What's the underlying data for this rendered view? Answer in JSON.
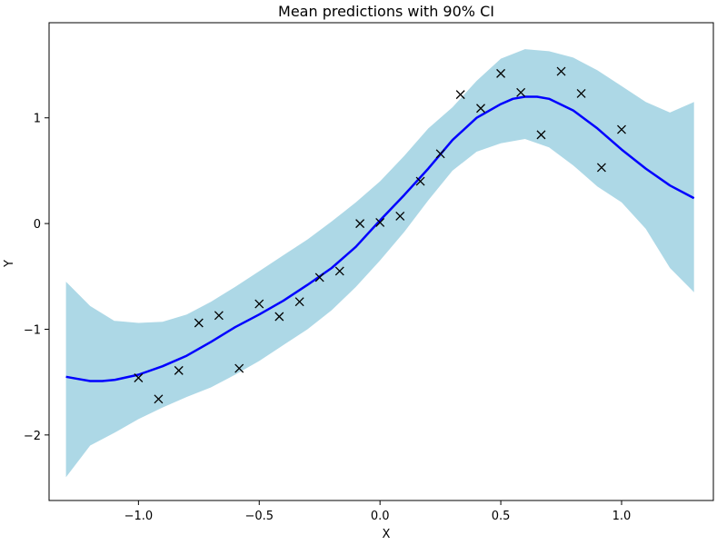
{
  "chart_data": {
    "type": "line",
    "title": "Mean predictions with 90% CI",
    "xlabel": "X",
    "ylabel": "Y",
    "xlim": [
      -1.37,
      1.38
    ],
    "ylim": [
      -2.62,
      1.9
    ],
    "x_ticks": [
      -1.0,
      -0.5,
      0.0,
      0.5,
      1.0
    ],
    "x_tick_labels": [
      "−1.0",
      "−0.5",
      "0.0",
      "0.5",
      "1.0"
    ],
    "y_ticks": [
      -2,
      -1,
      0,
      1
    ],
    "y_tick_labels": [
      "−2",
      "−1",
      "0",
      "1"
    ],
    "grid": false,
    "colors": {
      "mean": "#0000ff",
      "band": "#add8e6",
      "points": "#000000"
    },
    "series": [
      {
        "kind": "mean-line",
        "x": [
          -1.3,
          -1.25,
          -1.2,
          -1.15,
          -1.1,
          -1.0,
          -0.9,
          -0.8,
          -0.7,
          -0.6,
          -0.5,
          -0.4,
          -0.3,
          -0.2,
          -0.1,
          0.0,
          0.1,
          0.2,
          0.3,
          0.4,
          0.5,
          0.55,
          0.6,
          0.65,
          0.7,
          0.8,
          0.9,
          1.0,
          1.1,
          1.2,
          1.3
        ],
        "y": [
          -1.45,
          -1.47,
          -1.49,
          -1.49,
          -1.48,
          -1.43,
          -1.35,
          -1.25,
          -1.12,
          -0.98,
          -0.86,
          -0.73,
          -0.58,
          -0.42,
          -0.22,
          0.03,
          0.27,
          0.52,
          0.79,
          1.0,
          1.13,
          1.18,
          1.2,
          1.2,
          1.18,
          1.07,
          0.9,
          0.7,
          0.52,
          0.36,
          0.24
        ]
      },
      {
        "kind": "ci-band-90",
        "x": [
          -1.3,
          -1.2,
          -1.1,
          -1.0,
          -0.9,
          -0.8,
          -0.7,
          -0.6,
          -0.5,
          -0.4,
          -0.3,
          -0.2,
          -0.1,
          0.0,
          0.1,
          0.2,
          0.3,
          0.4,
          0.5,
          0.6,
          0.7,
          0.8,
          0.9,
          1.0,
          1.1,
          1.2,
          1.3
        ],
        "lower": [
          -2.4,
          -2.1,
          -1.98,
          -1.85,
          -1.74,
          -1.64,
          -1.55,
          -1.43,
          -1.3,
          -1.15,
          -1.0,
          -0.82,
          -0.6,
          -0.35,
          -0.08,
          0.22,
          0.5,
          0.68,
          0.76,
          0.8,
          0.72,
          0.55,
          0.35,
          0.2,
          -0.05,
          -0.42,
          -0.65
        ],
        "upper": [
          -0.55,
          -0.78,
          -0.92,
          -0.94,
          -0.93,
          -0.86,
          -0.74,
          -0.6,
          -0.45,
          -0.3,
          -0.15,
          0.02,
          0.2,
          0.4,
          0.64,
          0.9,
          1.1,
          1.35,
          1.56,
          1.65,
          1.63,
          1.57,
          1.45,
          1.3,
          1.15,
          1.05,
          1.15
        ]
      },
      {
        "kind": "observations",
        "marker": "x",
        "x": [
          -1.0,
          -0.917,
          -0.833,
          -0.75,
          -0.667,
          -0.583,
          -0.5,
          -0.417,
          -0.333,
          -0.25,
          -0.167,
          -0.083,
          0.0,
          0.083,
          0.167,
          0.25,
          0.333,
          0.417,
          0.5,
          0.583,
          0.667,
          0.75,
          0.833,
          0.917,
          1.0
        ],
        "y": [
          -1.46,
          -1.66,
          -1.39,
          -0.94,
          -0.87,
          -1.37,
          -0.76,
          -0.88,
          -0.74,
          -0.51,
          -0.45,
          0.0,
          0.01,
          0.07,
          0.4,
          0.66,
          1.22,
          1.09,
          1.42,
          1.24,
          0.84,
          1.44,
          1.23,
          0.53,
          0.89
        ]
      }
    ]
  }
}
